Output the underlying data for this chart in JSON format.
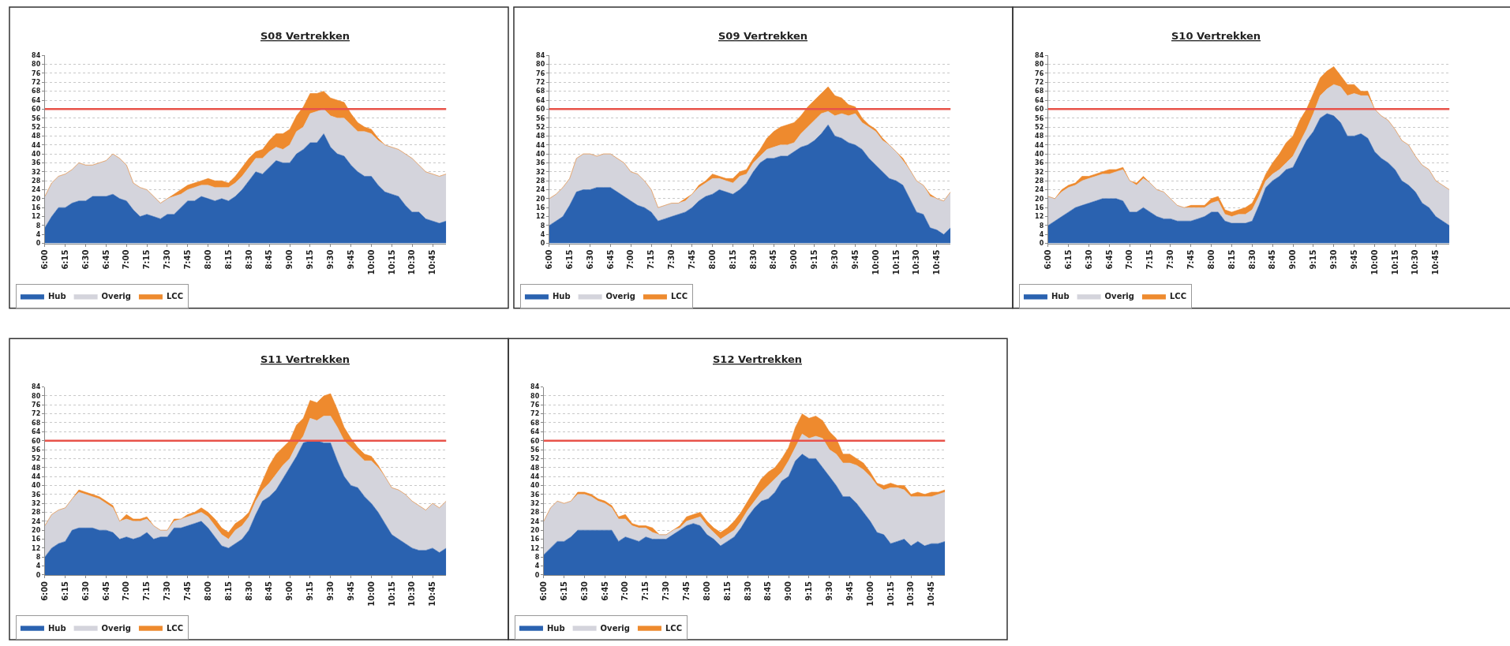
{
  "chart_data": [
    {
      "type": "area",
      "title": "S08 Vertrekken",
      "stacked": true,
      "ylim": [
        0,
        84
      ],
      "yticks": [
        0,
        4,
        8,
        12,
        16,
        20,
        24,
        28,
        32,
        36,
        40,
        44,
        48,
        52,
        56,
        60,
        64,
        68,
        72,
        76,
        80,
        84
      ],
      "grid": "y",
      "legend": "bottom left",
      "marker": "none",
      "categories": [
        "6:00",
        null,
        null,
        "6:15",
        null,
        null,
        "6:30",
        null,
        null,
        "6:45",
        null,
        null,
        "7:00",
        null,
        null,
        "7:15",
        null,
        null,
        "7:30",
        null,
        null,
        "7:45",
        null,
        null,
        "8:00",
        null,
        null,
        "8:15",
        null,
        null,
        "8:30",
        null,
        null,
        "8:45",
        null,
        null,
        "9:00",
        null,
        null,
        "9:15",
        null,
        null,
        "9:30",
        null,
        null,
        "9:45",
        null,
        null,
        "10:00",
        null,
        null,
        "10:15",
        null,
        null,
        "10:30",
        null,
        null,
        "10:45",
        null,
        null
      ],
      "series": [
        {
          "name": "Hub",
          "color": "#2a62b0",
          "values": [
            7,
            12,
            16,
            16,
            18,
            19,
            19,
            21,
            21,
            21,
            22,
            20,
            19,
            15,
            12,
            13,
            12,
            11,
            13,
            13,
            16,
            19,
            19,
            21,
            20,
            19,
            20,
            19,
            21,
            24,
            28,
            32,
            31,
            34,
            37,
            36,
            36,
            40,
            42,
            45,
            45,
            49,
            43,
            40,
            39,
            35,
            32,
            30,
            30,
            26,
            23,
            22,
            21,
            17,
            14,
            14,
            11,
            10,
            9,
            10
          ]
        },
        {
          "name": "Overig",
          "color": "#d4d4dc",
          "values": [
            14,
            15,
            14,
            15,
            15,
            17,
            16,
            14,
            15,
            16,
            18,
            18,
            16,
            12,
            13,
            11,
            9,
            7,
            7,
            8,
            6,
            5,
            6,
            5,
            6,
            6,
            5,
            6,
            6,
            6,
            6,
            6,
            7,
            7,
            6,
            6,
            8,
            10,
            10,
            13,
            14,
            11,
            14,
            16,
            17,
            18,
            18,
            20,
            19,
            20,
            21,
            21,
            21,
            23,
            24,
            21,
            21,
            21,
            21,
            21
          ]
        },
        {
          "name": "LCC",
          "color": "#ee8a2e",
          "values": [
            0,
            0,
            0,
            0,
            0,
            0,
            0,
            0,
            0,
            0,
            0,
            0,
            0,
            0,
            0,
            0,
            0,
            0,
            0,
            1,
            2,
            2,
            2,
            2,
            3,
            3,
            3,
            2,
            3,
            4,
            4,
            3,
            4,
            5,
            6,
            7,
            7,
            7,
            9,
            9,
            8,
            8,
            8,
            8,
            7,
            5,
            4,
            2,
            2,
            1,
            0,
            0,
            0,
            0,
            0,
            0,
            0,
            0,
            0,
            0
          ]
        }
      ],
      "ref_lines": [
        {
          "axis": "y",
          "value": 60,
          "color": "#e8534a"
        }
      ]
    },
    {
      "type": "area",
      "title": "S09 Vertrekken",
      "stacked": true,
      "ylim": [
        0,
        84
      ],
      "yticks": [
        0,
        4,
        8,
        12,
        16,
        20,
        24,
        28,
        32,
        36,
        40,
        44,
        48,
        52,
        56,
        60,
        64,
        68,
        72,
        76,
        80,
        84
      ],
      "grid": "y",
      "legend": "bottom left",
      "marker": "none",
      "categories": [
        "6:00",
        null,
        null,
        "6:15",
        null,
        null,
        "6:30",
        null,
        null,
        "6:45",
        null,
        null,
        "7:00",
        null,
        null,
        "7:15",
        null,
        null,
        "7:30",
        null,
        null,
        "7:45",
        null,
        null,
        "8:00",
        null,
        null,
        "8:15",
        null,
        null,
        "8:30",
        null,
        null,
        "8:45",
        null,
        null,
        "9:00",
        null,
        null,
        "9:15",
        null,
        null,
        "9:30",
        null,
        null,
        "9:45",
        null,
        null,
        "10:00",
        null,
        null,
        "10:15",
        null,
        null,
        "10:30",
        null,
        null,
        "10:45",
        null,
        null
      ],
      "series": [
        {
          "name": "Hub",
          "color": "#2a62b0",
          "values": [
            8,
            10,
            12,
            17,
            23,
            24,
            24,
            25,
            25,
            25,
            23,
            21,
            19,
            17,
            16,
            14,
            10,
            11,
            12,
            13,
            14,
            16,
            19,
            21,
            22,
            24,
            23,
            22,
            24,
            27,
            32,
            36,
            38,
            38,
            39,
            39,
            41,
            43,
            44,
            46,
            49,
            53,
            48,
            47,
            45,
            44,
            42,
            38,
            35,
            32,
            29,
            28,
            26,
            20,
            14,
            13,
            7,
            6,
            4,
            7
          ]
        },
        {
          "name": "Overig",
          "color": "#d4d4dc",
          "values": [
            12,
            12,
            13,
            12,
            15,
            16,
            16,
            14,
            15,
            15,
            15,
            15,
            13,
            14,
            12,
            10,
            6,
            6,
            6,
            5,
            5,
            6,
            6,
            6,
            7,
            5,
            5,
            5,
            6,
            4,
            4,
            3,
            4,
            5,
            5,
            5,
            4,
            6,
            8,
            9,
            9,
            6,
            9,
            11,
            12,
            14,
            12,
            14,
            15,
            14,
            15,
            13,
            11,
            13,
            14,
            13,
            14,
            14,
            15,
            16
          ]
        },
        {
          "name": "LCC",
          "color": "#ee8a2e",
          "values": [
            0,
            0,
            0,
            0,
            0,
            0,
            0,
            0,
            0,
            0,
            0,
            0,
            0,
            0,
            0,
            0,
            0,
            0,
            0,
            0,
            1,
            0,
            1,
            1,
            2,
            1,
            1,
            2,
            2,
            2,
            2,
            3,
            5,
            7,
            8,
            9,
            9,
            8,
            9,
            9,
            9,
            11,
            9,
            7,
            5,
            3,
            2,
            1,
            1,
            1,
            0,
            0,
            1,
            0,
            0,
            0,
            1,
            0,
            0,
            0
          ]
        }
      ],
      "ref_lines": [
        {
          "axis": "y",
          "value": 60,
          "color": "#e8534a"
        }
      ]
    },
    {
      "type": "area",
      "title": "S10 Vertrekken",
      "stacked": true,
      "ylim": [
        0,
        84
      ],
      "yticks": [
        0,
        4,
        8,
        12,
        16,
        20,
        24,
        28,
        32,
        36,
        40,
        44,
        48,
        52,
        56,
        60,
        64,
        68,
        72,
        76,
        80,
        84
      ],
      "grid": "y",
      "legend": "bottom left",
      "marker": "none",
      "categories": [
        "6:00",
        null,
        null,
        "6:15",
        null,
        null,
        "6:30",
        null,
        null,
        "6:45",
        null,
        null,
        "7:00",
        null,
        null,
        "7:15",
        null,
        null,
        "7:30",
        null,
        null,
        "7:45",
        null,
        null,
        "8:00",
        null,
        null,
        "8:15",
        null,
        null,
        "8:30",
        null,
        null,
        "8:45",
        null,
        null,
        "9:00",
        null,
        null,
        "9:15",
        null,
        null,
        "9:30",
        null,
        null,
        "9:45",
        null,
        null,
        "10:00",
        null,
        null,
        "10:15",
        null,
        null,
        "10:30",
        null,
        null,
        "10:45",
        null,
        null
      ],
      "series": [
        {
          "name": "Hub",
          "color": "#2a62b0",
          "values": [
            8,
            10,
            12,
            14,
            16,
            17,
            18,
            19,
            20,
            20,
            20,
            19,
            14,
            14,
            16,
            14,
            12,
            11,
            11,
            10,
            10,
            10,
            11,
            12,
            14,
            14,
            10,
            9,
            9,
            9,
            10,
            17,
            25,
            28,
            30,
            33,
            34,
            40,
            46,
            50,
            56,
            58,
            57,
            54,
            48,
            48,
            49,
            47,
            41,
            38,
            36,
            33,
            28,
            26,
            23,
            18,
            16,
            12,
            10,
            8
          ]
        },
        {
          "name": "Overig",
          "color": "#d4d4dc",
          "values": [
            13,
            10,
            11,
            11,
            10,
            11,
            11,
            11,
            11,
            11,
            12,
            14,
            14,
            12,
            13,
            13,
            12,
            12,
            9,
            7,
            6,
            6,
            5,
            4,
            4,
            5,
            3,
            3,
            4,
            4,
            5,
            4,
            3,
            3,
            3,
            3,
            5,
            5,
            5,
            8,
            10,
            11,
            14,
            16,
            18,
            19,
            17,
            19,
            19,
            19,
            19,
            18,
            18,
            18,
            16,
            17,
            17,
            16,
            16,
            16
          ]
        },
        {
          "name": "LCC",
          "color": "#ee8a2e",
          "values": [
            0,
            0,
            1,
            1,
            1,
            2,
            1,
            1,
            1,
            2,
            1,
            1,
            0,
            1,
            1,
            0,
            0,
            0,
            0,
            0,
            0,
            1,
            1,
            1,
            2,
            2,
            2,
            2,
            2,
            3,
            3,
            3,
            3,
            5,
            7,
            9,
            9,
            10,
            9,
            9,
            8,
            8,
            8,
            5,
            5,
            4,
            2,
            2,
            0,
            0,
            0,
            0,
            0,
            0,
            0,
            0,
            0,
            0,
            0,
            0
          ]
        }
      ],
      "ref_lines": [
        {
          "axis": "y",
          "value": 60,
          "color": "#e8534a"
        }
      ]
    },
    {
      "type": "area",
      "title": "S11 Vertrekken",
      "stacked": true,
      "ylim": [
        0,
        84
      ],
      "yticks": [
        0,
        4,
        8,
        12,
        16,
        20,
        24,
        28,
        32,
        36,
        40,
        44,
        48,
        52,
        56,
        60,
        64,
        68,
        72,
        76,
        80,
        84
      ],
      "grid": "y",
      "legend": "bottom left",
      "marker": "none",
      "categories": [
        "6:00",
        null,
        null,
        "6:15",
        null,
        null,
        "6:30",
        null,
        null,
        "6:45",
        null,
        null,
        "7:00",
        null,
        null,
        "7:15",
        null,
        null,
        "7:30",
        null,
        null,
        "7:45",
        null,
        null,
        "8:00",
        null,
        null,
        "8:15",
        null,
        null,
        "8:30",
        null,
        null,
        "8:45",
        null,
        null,
        "9:00",
        null,
        null,
        "9:15",
        null,
        null,
        "9:30",
        null,
        null,
        "9:45",
        null,
        null,
        "10:00",
        null,
        null,
        "10:15",
        null,
        null,
        "10:30",
        null,
        null,
        "10:45",
        null,
        null
      ],
      "series": [
        {
          "name": "Hub",
          "color": "#2a62b0",
          "values": [
            8,
            12,
            14,
            15,
            20,
            21,
            21,
            21,
            20,
            20,
            19,
            16,
            17,
            16,
            17,
            19,
            16,
            17,
            17,
            21,
            21,
            22,
            23,
            24,
            21,
            17,
            13,
            12,
            14,
            16,
            20,
            27,
            33,
            35,
            38,
            43,
            48,
            53,
            59,
            60,
            60,
            59,
            59,
            51,
            44,
            40,
            39,
            35,
            32,
            28,
            23,
            18,
            16,
            14,
            12,
            11,
            11,
            12,
            10,
            12
          ]
        },
        {
          "name": "Overig",
          "color": "#d4d4dc",
          "values": [
            14,
            15,
            15,
            15,
            14,
            16,
            15,
            14,
            14,
            12,
            11,
            8,
            8,
            8,
            7,
            6,
            6,
            3,
            3,
            3,
            4,
            4,
            4,
            4,
            5,
            5,
            5,
            4,
            6,
            6,
            6,
            6,
            5,
            6,
            7,
            6,
            4,
            5,
            3,
            10,
            9,
            12,
            12,
            15,
            16,
            17,
            15,
            16,
            19,
            20,
            21,
            21,
            22,
            22,
            21,
            20,
            18,
            20,
            20,
            21
          ]
        },
        {
          "name": "LCC",
          "color": "#ee8a2e",
          "values": [
            0,
            0,
            0,
            0,
            0,
            1,
            1,
            1,
            1,
            1,
            1,
            0,
            2,
            1,
            1,
            1,
            0,
            0,
            0,
            1,
            0,
            1,
            1,
            2,
            2,
            3,
            3,
            3,
            3,
            3,
            2,
            2,
            4,
            8,
            9,
            8,
            8,
            9,
            8,
            8,
            8,
            9,
            10,
            8,
            6,
            4,
            3,
            3,
            2,
            1,
            0,
            0,
            0,
            0,
            0,
            0,
            0,
            0,
            0,
            0
          ]
        }
      ],
      "ref_lines": [
        {
          "axis": "y",
          "value": 60,
          "color": "#e8534a"
        }
      ]
    },
    {
      "type": "area",
      "title": "S12 Vertrekken",
      "stacked": true,
      "ylim": [
        0,
        84
      ],
      "yticks": [
        0,
        4,
        8,
        12,
        16,
        20,
        24,
        28,
        32,
        36,
        40,
        44,
        48,
        52,
        56,
        60,
        64,
        68,
        72,
        76,
        80,
        84
      ],
      "grid": "y",
      "legend": "bottom left",
      "marker": "none",
      "categories": [
        "6:00",
        null,
        null,
        "6:15",
        null,
        null,
        "6:30",
        null,
        null,
        "6:45",
        null,
        null,
        "7:00",
        null,
        null,
        "7:15",
        null,
        null,
        "7:30",
        null,
        null,
        "7:45",
        null,
        null,
        "8:00",
        null,
        null,
        "8:15",
        null,
        null,
        "8:30",
        null,
        null,
        "8:45",
        null,
        null,
        "9:00",
        null,
        null,
        "9:15",
        null,
        null,
        "9:30",
        null,
        null,
        "9:45",
        null,
        null,
        "10:00",
        null,
        null,
        "10:15",
        null,
        null,
        "10:30",
        null,
        null,
        "10:45",
        null,
        null
      ],
      "series": [
        {
          "name": "Hub",
          "color": "#2a62b0",
          "values": [
            9,
            12,
            15,
            15,
            17,
            20,
            20,
            20,
            20,
            20,
            20,
            15,
            17,
            16,
            15,
            17,
            16,
            16,
            16,
            18,
            20,
            22,
            23,
            22,
            18,
            16,
            13,
            15,
            17,
            21,
            26,
            30,
            33,
            34,
            37,
            42,
            44,
            51,
            54,
            52,
            52,
            48,
            44,
            40,
            35,
            35,
            32,
            28,
            24,
            19,
            18,
            14,
            15,
            16,
            13,
            15,
            13,
            14,
            14,
            15
          ]
        },
        {
          "name": "Overig",
          "color": "#d4d4dc",
          "values": [
            15,
            18,
            18,
            17,
            16,
            16,
            16,
            15,
            13,
            12,
            10,
            10,
            8,
            6,
            6,
            4,
            3,
            2,
            2,
            2,
            1,
            2,
            2,
            4,
            4,
            3,
            3,
            3,
            3,
            3,
            3,
            3,
            4,
            6,
            6,
            4,
            7,
            6,
            9,
            9,
            10,
            13,
            12,
            14,
            15,
            15,
            17,
            19,
            20,
            21,
            20,
            25,
            24,
            22,
            22,
            20,
            22,
            21,
            22,
            22
          ]
        },
        {
          "name": "LCC",
          "color": "#ee8a2e",
          "values": [
            0,
            0,
            0,
            0,
            0,
            1,
            1,
            1,
            1,
            1,
            1,
            1,
            2,
            1,
            1,
            1,
            2,
            0,
            0,
            0,
            1,
            2,
            2,
            2,
            2,
            2,
            3,
            3,
            4,
            4,
            4,
            5,
            6,
            6,
            5,
            6,
            6,
            9,
            9,
            9,
            9,
            8,
            8,
            7,
            4,
            4,
            3,
            3,
            2,
            1,
            2,
            2,
            1,
            2,
            1,
            2,
            1,
            2,
            1,
            1
          ]
        }
      ],
      "ref_lines": [
        {
          "axis": "y",
          "value": 60,
          "color": "#e8534a"
        }
      ]
    }
  ]
}
